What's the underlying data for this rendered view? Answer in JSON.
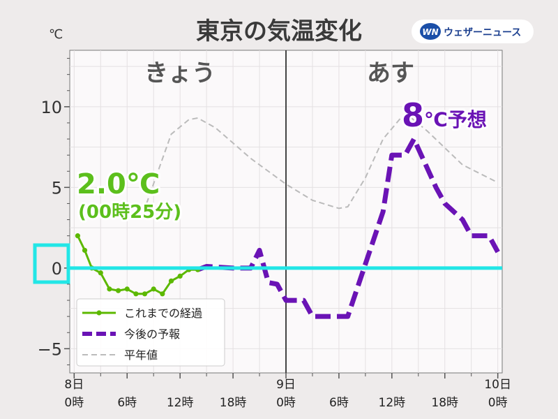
{
  "title": "東京の気温変化",
  "unit_label": "℃",
  "brand": {
    "name": "ウェザーニュース",
    "mark": "WN"
  },
  "day_labels": [
    "きょう",
    "あす"
  ],
  "colors": {
    "observed": "#5cb800",
    "forecast": "#6a13b5",
    "normal": "#bbbbbb",
    "zero_line": "#22e6e6",
    "highlight_box": "#22e6e6",
    "plot_bg": "#fbf9fa",
    "divider": "#444444"
  },
  "annotations": {
    "current_value": "2.0℃",
    "current_time": "(00時25分)",
    "forecast_max_num": "8",
    "forecast_max_suffix": "℃予想"
  },
  "chart_data": {
    "type": "line",
    "title": "東京の気温変化",
    "ylabel": "℃",
    "xlabel": "",
    "ylim": [
      -6.5,
      13.5
    ],
    "xlim": [
      -0.5,
      48.5
    ],
    "grid": true,
    "legend_position": "bottom-left",
    "x_unit": "hours from 8日 0時",
    "yticks": [
      {
        "value": 10,
        "label": "10"
      },
      {
        "value": 5,
        "label": "5"
      },
      {
        "value": 0,
        "label": "0"
      },
      {
        "value": -5,
        "label": "−5"
      }
    ],
    "xticks": [
      {
        "x": 0,
        "top": "8日",
        "bottom": "0時"
      },
      {
        "x": 6,
        "top": "",
        "bottom": "6時"
      },
      {
        "x": 12,
        "top": "",
        "bottom": "12時"
      },
      {
        "x": 18,
        "top": "",
        "bottom": "18時"
      },
      {
        "x": 24,
        "top": "9日",
        "bottom": "0時"
      },
      {
        "x": 30,
        "top": "",
        "bottom": "6時"
      },
      {
        "x": 36,
        "top": "",
        "bottom": "12時"
      },
      {
        "x": 42,
        "top": "",
        "bottom": "18時"
      },
      {
        "x": 48,
        "top": "10日",
        "bottom": "0時"
      }
    ],
    "divider_x": 24,
    "series": [
      {
        "name": "これまでの経過",
        "style": "solid-markers",
        "points": [
          [
            0.4,
            2.0
          ],
          [
            1.2,
            1.1
          ],
          [
            2.0,
            0.0
          ],
          [
            3.0,
            -0.3
          ],
          [
            4.0,
            -1.3
          ],
          [
            5.0,
            -1.4
          ],
          [
            6.0,
            -1.3
          ],
          [
            7.0,
            -1.6
          ],
          [
            8.0,
            -1.6
          ],
          [
            9.0,
            -1.3
          ],
          [
            10.0,
            -1.6
          ],
          [
            11.0,
            -0.8
          ],
          [
            12.0,
            -0.5
          ],
          [
            13.0,
            -0.1
          ],
          [
            14.0,
            -0.1
          ]
        ]
      },
      {
        "name": "今後の予報",
        "style": "dashed",
        "points": [
          [
            14.0,
            -0.1
          ],
          [
            15.0,
            0.1
          ],
          [
            18.0,
            0.0
          ],
          [
            20.0,
            0.0
          ],
          [
            21.0,
            1.1
          ],
          [
            22.0,
            -0.9
          ],
          [
            23.0,
            -1.0
          ],
          [
            24.0,
            -2.0
          ],
          [
            26.0,
            -2.0
          ],
          [
            27.0,
            -3.0
          ],
          [
            31.0,
            -3.0
          ],
          [
            35.0,
            3.5
          ],
          [
            36.0,
            7.0
          ],
          [
            37.5,
            7.0
          ],
          [
            38.5,
            8.0
          ],
          [
            41.0,
            5.0
          ],
          [
            42.0,
            4.0
          ],
          [
            44.0,
            3.0
          ],
          [
            45.0,
            2.0
          ],
          [
            47.0,
            2.0
          ],
          [
            48.0,
            1.0
          ]
        ]
      },
      {
        "name": "平年値",
        "style": "dashed-thin",
        "points": [
          [
            8.2,
            4.0
          ],
          [
            11.0,
            8.3
          ],
          [
            13.0,
            9.2
          ],
          [
            14.0,
            9.3
          ],
          [
            16.0,
            8.7
          ],
          [
            20.0,
            6.8
          ],
          [
            24.0,
            5.2
          ],
          [
            27.0,
            4.2
          ],
          [
            30.0,
            3.7
          ],
          [
            31.0,
            3.8
          ],
          [
            33.0,
            5.6
          ],
          [
            35.0,
            8.0
          ],
          [
            37.0,
            9.3
          ],
          [
            38.0,
            9.4
          ],
          [
            40.0,
            8.5
          ],
          [
            44.0,
            6.4
          ],
          [
            48.0,
            5.3
          ]
        ]
      }
    ]
  }
}
